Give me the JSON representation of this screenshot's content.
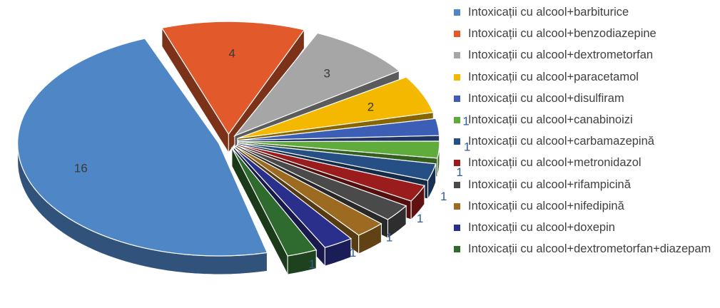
{
  "chart_data": {
    "type": "pie",
    "style": "3d-exploded",
    "title": "",
    "legend_position": "right",
    "slices": [
      {
        "label": "Intoxicații cu alcool+barbiturice",
        "value": 16,
        "color": "#4f86c6"
      },
      {
        "label": "Intoxicații cu alcool+benzodiazepine",
        "value": 4,
        "color": "#e25a2c"
      },
      {
        "label": "Intoxicații cu alcool+dextrometorfan",
        "value": 3,
        "color": "#a6a6a6"
      },
      {
        "label": "Intoxicații cu alcool+paracetamol",
        "value": 2,
        "color": "#f5b800"
      },
      {
        "label": "Intoxicații cu alcool+disulfiram",
        "value": 1,
        "color": "#3c5fb5"
      },
      {
        "label": "Intoxicații cu alcool+canabinoizi",
        "value": 1,
        "color": "#5fac3c"
      },
      {
        "label": "Intoxicații cu alcool+carbamazepină",
        "value": 1,
        "color": "#264f86"
      },
      {
        "label": "Intoxicații cu alcool+metronidazol",
        "value": 1,
        "color": "#9b1c1c"
      },
      {
        "label": "Intoxicații cu alcool+rifampicină",
        "value": 1,
        "color": "#4a4a4a"
      },
      {
        "label": "Intoxicații cu alcool+nifedipină",
        "value": 1,
        "color": "#9c6a21"
      },
      {
        "label": "Intoxicații cu alcool+doxepin",
        "value": 1,
        "color": "#2b2f8c"
      },
      {
        "label": "Intoxicații cu alcool+dextrometorfan+diazepam",
        "value": 1,
        "color": "#2f6a2f"
      }
    ]
  }
}
